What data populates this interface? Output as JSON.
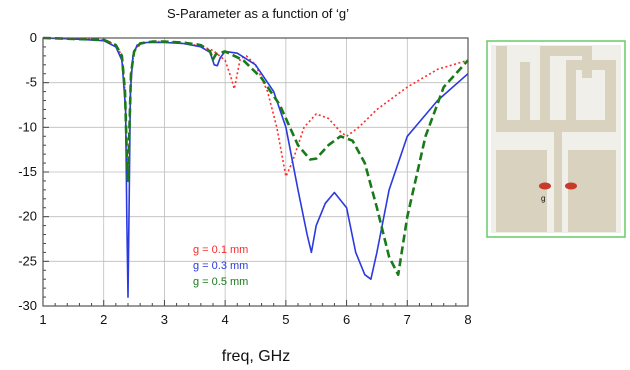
{
  "chart_data": {
    "type": "line",
    "title": "S-Parameter as a function of ‘g’",
    "xlabel": "freq, GHz",
    "ylabel": "",
    "xlim": [
      1,
      8
    ],
    "ylim": [
      -30,
      0
    ],
    "x_ticks": [
      1,
      2,
      3,
      4,
      5,
      6,
      7,
      8
    ],
    "y_ticks": [
      0,
      -5,
      -10,
      -15,
      -20,
      -25,
      -30
    ],
    "x_tick_labels": [
      "1",
      "2",
      "3",
      "4",
      "5",
      "6",
      "7",
      "8"
    ],
    "y_tick_labels": [
      "0",
      "-5",
      "-10",
      "-15",
      "-20",
      "-25",
      "-30"
    ],
    "grid": true,
    "legend_position": "lower-left",
    "series": [
      {
        "name": "g = 0.1 mm",
        "color": "#ff2a2a",
        "style": "dotted",
        "x": [
          1.0,
          1.5,
          2.0,
          2.2,
          2.3,
          2.35,
          2.38,
          2.4,
          2.42,
          2.45,
          2.5,
          2.6,
          2.8,
          3.0,
          3.3,
          3.6,
          3.8,
          4.0,
          4.05,
          4.1,
          4.15,
          4.2,
          4.25,
          4.35,
          4.5,
          4.7,
          4.85,
          5.0,
          5.1,
          5.3,
          5.5,
          5.7,
          5.9,
          6.0,
          6.2,
          6.5,
          7.0,
          7.5,
          8.0
        ],
        "y": [
          0.0,
          -0.1,
          -0.2,
          -0.8,
          -2.0,
          -6.0,
          -14.0,
          -16.0,
          -12.0,
          -4.0,
          -1.5,
          -0.6,
          -0.4,
          -0.4,
          -0.6,
          -0.9,
          -1.4,
          -2.5,
          -3.5,
          -4.5,
          -5.7,
          -4.0,
          -2.3,
          -2.0,
          -3.0,
          -6.0,
          -10.0,
          -15.5,
          -14.0,
          -10.0,
          -8.5,
          -9.0,
          -10.5,
          -11.0,
          -10.0,
          -8.0,
          -5.5,
          -3.5,
          -2.5
        ]
      },
      {
        "name": "g = 0.3 mm",
        "color": "#2a3adf",
        "style": "solid",
        "x": [
          1.0,
          1.5,
          2.0,
          2.2,
          2.3,
          2.36,
          2.38,
          2.4,
          2.42,
          2.44,
          2.48,
          2.55,
          2.7,
          3.0,
          3.3,
          3.6,
          3.75,
          3.82,
          3.87,
          3.92,
          4.0,
          4.2,
          4.5,
          4.8,
          5.0,
          5.2,
          5.35,
          5.42,
          5.5,
          5.65,
          5.8,
          6.0,
          6.15,
          6.3,
          6.4,
          6.5,
          6.7,
          7.0,
          7.5,
          8.0
        ],
        "y": [
          0.0,
          -0.1,
          -0.3,
          -1.0,
          -2.5,
          -8.0,
          -20.0,
          -29.0,
          -18.0,
          -6.0,
          -2.0,
          -0.8,
          -0.5,
          -0.5,
          -0.6,
          -1.0,
          -1.6,
          -3.0,
          -3.1,
          -2.2,
          -1.5,
          -1.7,
          -3.0,
          -6.0,
          -10.0,
          -17.0,
          -22.0,
          -24.0,
          -21.0,
          -18.5,
          -17.3,
          -19.0,
          -24.0,
          -26.5,
          -27.0,
          -24.0,
          -17.0,
          -11.0,
          -7.0,
          -4.0
        ]
      },
      {
        "name": "g = 0.5 mm",
        "color": "#1a7a1a",
        "style": "dashed",
        "x": [
          1.0,
          1.5,
          2.0,
          2.2,
          2.3,
          2.35,
          2.38,
          2.4,
          2.42,
          2.45,
          2.5,
          2.6,
          2.8,
          3.0,
          3.3,
          3.6,
          3.75,
          3.8,
          3.85,
          4.0,
          4.3,
          4.6,
          4.9,
          5.2,
          5.4,
          5.5,
          5.7,
          5.9,
          6.1,
          6.3,
          6.5,
          6.7,
          6.85,
          7.0,
          7.3,
          7.6,
          8.0
        ],
        "y": [
          0.0,
          -0.1,
          -0.2,
          -0.8,
          -2.0,
          -6.0,
          -13.0,
          -16.0,
          -11.0,
          -4.0,
          -1.5,
          -0.6,
          -0.4,
          -0.4,
          -0.5,
          -0.8,
          -1.5,
          -2.4,
          -1.8,
          -1.5,
          -2.5,
          -4.5,
          -7.5,
          -12.0,
          -13.6,
          -13.5,
          -12.0,
          -11.0,
          -11.5,
          -14.0,
          -19.0,
          -24.5,
          -26.5,
          -20.0,
          -11.0,
          -5.5,
          -2.5
        ]
      }
    ]
  },
  "inset": {
    "label": "g"
  }
}
